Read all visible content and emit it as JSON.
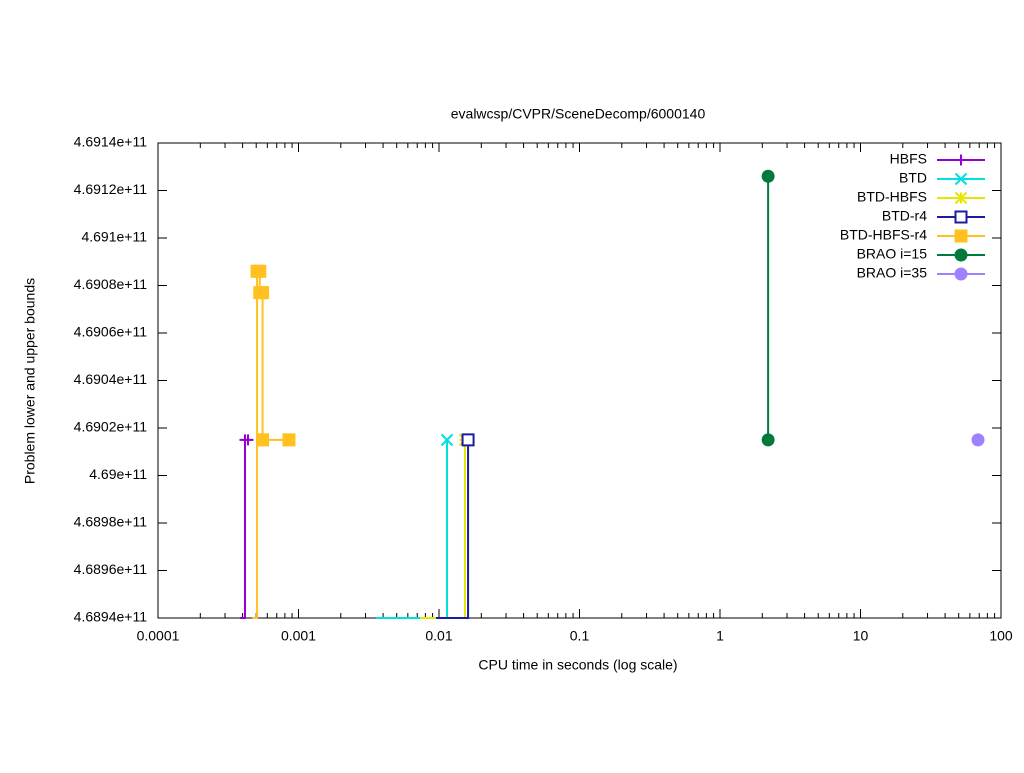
{
  "chart_data": {
    "type": "line",
    "title": "evalwcsp/CVPR/SceneDecomp/6000140",
    "xlabel": "CPU time in seconds (log scale)",
    "ylabel": "Problem lower and upper bounds",
    "xscale": "log",
    "xlim": [
      0.0001,
      100
    ],
    "xticks": [
      0.0001,
      0.001,
      0.01,
      0.1,
      1,
      10,
      100
    ],
    "ylim": [
      468940000000,
      469140000000
    ],
    "yticks": [
      {
        "value": 468940000000,
        "label": "4.6894e+11"
      },
      {
        "value": 468960000000,
        "label": "4.6896e+11"
      },
      {
        "value": 468980000000,
        "label": "4.6898e+11"
      },
      {
        "value": 469000000000,
        "label": "4.69e+11"
      },
      {
        "value": 469020000000,
        "label": "4.6902e+11"
      },
      {
        "value": 469040000000,
        "label": "4.6904e+11"
      },
      {
        "value": 469060000000,
        "label": "4.6906e+11"
      },
      {
        "value": 469080000000,
        "label": "4.6908e+11"
      },
      {
        "value": 469100000000,
        "label": "4.691e+11"
      },
      {
        "value": 469120000000,
        "label": "4.6912e+11"
      },
      {
        "value": 469140000000,
        "label": "4.6914e+11"
      }
    ],
    "legend": "top-right",
    "series": [
      {
        "name": "HBFS",
        "color": "#9400d3",
        "marker": "plus",
        "x": [
          0.000384,
          0.000416,
          0.000416,
          0.000437
        ],
        "values": [
          468940000000,
          468940000000,
          469015000000,
          469015000000
        ]
      },
      {
        "name": "BTD",
        "color": "#00e0e0",
        "marker": "cross",
        "x": [
          0.00356,
          0.0114,
          0.0114
        ],
        "values": [
          468940000000,
          468940000000,
          469015000000
        ]
      },
      {
        "name": "BTD-HBFS",
        "color": "#e6e600",
        "marker": "star",
        "x": [
          0.00733,
          0.0153,
          0.0153
        ],
        "values": [
          468940000000,
          468940000000,
          469015000000
        ]
      },
      {
        "name": "BTD-r4",
        "color": "#1c1ca0",
        "marker": "square",
        "x": [
          0.00953,
          0.0161,
          0.0161
        ],
        "values": [
          468940000000,
          468940000000,
          469015000000
        ]
      },
      {
        "name": "BTD-HBFS-r4",
        "color": "#ffc020",
        "marker": "filled-square",
        "x": [
          0.000467,
          0.000507,
          0.000507,
          0.00053,
          0.00053,
          0.000555,
          0.000555,
          0.000855
        ],
        "values": [
          468940000000,
          468940000000,
          469086000000,
          469086000000,
          469077000000,
          469077000000,
          469015000000,
          469015000000
        ]
      },
      {
        "name": "BRAO i=15",
        "color": "#007a3d",
        "marker": "circle",
        "x": [
          2.2,
          2.2
        ],
        "values": [
          469126000000,
          469015000000
        ]
      },
      {
        "name": "BRAO i=35",
        "color": "#9f80ff",
        "marker": "filled-circle",
        "x": [
          68.6
        ],
        "values": [
          469015000000
        ]
      }
    ]
  }
}
